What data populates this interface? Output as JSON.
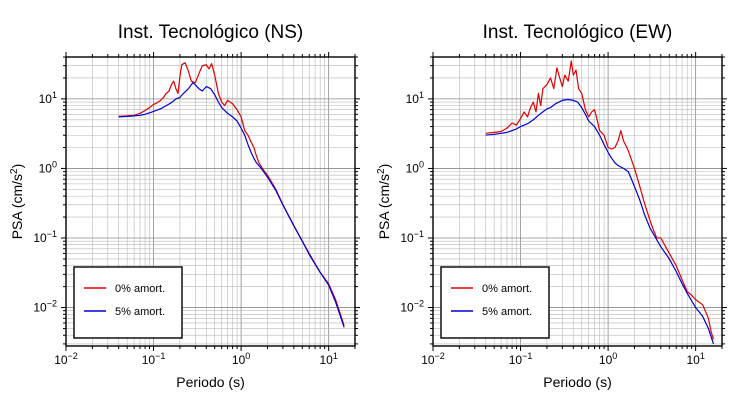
{
  "chart_data": [
    {
      "type": "line",
      "title": "Inst. Tecnológico (NS)",
      "xlabel": "Periodo (s)",
      "ylabel_main": "PSA (cm/s",
      "ylabel_sup": "2",
      "ylabel_close": ")",
      "xscale": "log",
      "yscale": "log",
      "xlim": [
        0.01,
        20
      ],
      "ylim": [
        0.0028,
        40
      ],
      "grid": true,
      "legend_position": "bottom-left",
      "x_ticks": [
        {
          "value": 0.01,
          "base": "10",
          "exp": "−2"
        },
        {
          "value": 0.1,
          "base": "10",
          "exp": "−1"
        },
        {
          "value": 1,
          "base": "10",
          "exp": "0"
        },
        {
          "value": 10,
          "base": "10",
          "exp": "1"
        }
      ],
      "y_ticks": [
        {
          "value": 0.01,
          "base": "10",
          "exp": "−2"
        },
        {
          "value": 0.1,
          "base": "10",
          "exp": "−1"
        },
        {
          "value": 1,
          "base": "10",
          "exp": "0"
        },
        {
          "value": 10,
          "base": "10",
          "exp": "1"
        }
      ],
      "series": [
        {
          "name": "0% amort.",
          "color": "#e00000",
          "points": [
            [
              0.04,
              5.6
            ],
            [
              0.05,
              5.7
            ],
            [
              0.06,
              5.8
            ],
            [
              0.07,
              6.2
            ],
            [
              0.08,
              6.8
            ],
            [
              0.09,
              7.5
            ],
            [
              0.1,
              8.3
            ],
            [
              0.11,
              8.8
            ],
            [
              0.12,
              9.5
            ],
            [
              0.13,
              10.5
            ],
            [
              0.14,
              12
            ],
            [
              0.15,
              13
            ],
            [
              0.16,
              16
            ],
            [
              0.17,
              18
            ],
            [
              0.18,
              14
            ],
            [
              0.19,
              12
            ],
            [
              0.2,
              21
            ],
            [
              0.21,
              31
            ],
            [
              0.23,
              33
            ],
            [
              0.25,
              25
            ],
            [
              0.27,
              18
            ],
            [
              0.3,
              17
            ],
            [
              0.33,
              23
            ],
            [
              0.36,
              30
            ],
            [
              0.4,
              31
            ],
            [
              0.43,
              27
            ],
            [
              0.46,
              32
            ],
            [
              0.5,
              22
            ],
            [
              0.55,
              12
            ],
            [
              0.6,
              9
            ],
            [
              0.65,
              8
            ],
            [
              0.7,
              9.5
            ],
            [
              0.8,
              8.5
            ],
            [
              0.9,
              7
            ],
            [
              1.0,
              5.5
            ],
            [
              1.1,
              3.5
            ],
            [
              1.2,
              3.0
            ],
            [
              1.3,
              2.4
            ],
            [
              1.4,
              2.0
            ],
            [
              1.5,
              1.5
            ],
            [
              1.6,
              1.2
            ],
            [
              1.8,
              0.95
            ],
            [
              2,
              0.8
            ],
            [
              2.5,
              0.5
            ],
            [
              3,
              0.3
            ],
            [
              4,
              0.15
            ],
            [
              5,
              0.09
            ],
            [
              6,
              0.06
            ],
            [
              7,
              0.043
            ],
            [
              8,
              0.032
            ],
            [
              10,
              0.022
            ],
            [
              12,
              0.013
            ],
            [
              15,
              0.0055
            ]
          ]
        },
        {
          "name": "5% amort.",
          "color": "#0000d8",
          "points": [
            [
              0.04,
              5.5
            ],
            [
              0.05,
              5.6
            ],
            [
              0.06,
              5.7
            ],
            [
              0.07,
              5.8
            ],
            [
              0.08,
              6.0
            ],
            [
              0.09,
              6.3
            ],
            [
              0.1,
              6.6
            ],
            [
              0.12,
              7.2
            ],
            [
              0.14,
              8.0
            ],
            [
              0.16,
              8.8
            ],
            [
              0.18,
              10
            ],
            [
              0.2,
              10.5
            ],
            [
              0.22,
              12
            ],
            [
              0.25,
              14
            ],
            [
              0.28,
              17
            ],
            [
              0.3,
              16
            ],
            [
              0.33,
              14
            ],
            [
              0.36,
              13
            ],
            [
              0.4,
              15
            ],
            [
              0.45,
              14
            ],
            [
              0.5,
              11.5
            ],
            [
              0.55,
              9
            ],
            [
              0.6,
              7.5
            ],
            [
              0.7,
              6.2
            ],
            [
              0.8,
              5.5
            ],
            [
              0.9,
              4.8
            ],
            [
              1.0,
              3.8
            ],
            [
              1.1,
              3.0
            ],
            [
              1.2,
              2.2
            ],
            [
              1.3,
              1.7
            ],
            [
              1.4,
              1.4
            ],
            [
              1.5,
              1.2
            ],
            [
              1.7,
              1.0
            ],
            [
              2,
              0.75
            ],
            [
              2.5,
              0.48
            ],
            [
              3,
              0.3
            ],
            [
              4,
              0.15
            ],
            [
              5,
              0.09
            ],
            [
              6,
              0.058
            ],
            [
              7,
              0.042
            ],
            [
              8,
              0.032
            ],
            [
              10,
              0.021
            ],
            [
              12,
              0.012
            ],
            [
              15,
              0.0052
            ]
          ]
        }
      ]
    },
    {
      "type": "line",
      "title": "Inst. Tecnológico (EW)",
      "xlabel": "Periodo (s)",
      "ylabel_main": "PSA (cm/s",
      "ylabel_sup": "2",
      "ylabel_close": ")",
      "xscale": "log",
      "yscale": "log",
      "xlim": [
        0.01,
        20
      ],
      "ylim": [
        0.0028,
        40
      ],
      "grid": true,
      "legend_position": "bottom-left",
      "x_ticks": [
        {
          "value": 0.01,
          "base": "10",
          "exp": "−2"
        },
        {
          "value": 0.1,
          "base": "10",
          "exp": "−1"
        },
        {
          "value": 1,
          "base": "10",
          "exp": "0"
        },
        {
          "value": 10,
          "base": "10",
          "exp": "1"
        }
      ],
      "y_ticks": [
        {
          "value": 0.01,
          "base": "10",
          "exp": "−2"
        },
        {
          "value": 0.1,
          "base": "10",
          "exp": "−1"
        },
        {
          "value": 1,
          "base": "10",
          "exp": "0"
        },
        {
          "value": 10,
          "base": "10",
          "exp": "1"
        }
      ],
      "series": [
        {
          "name": "0% amort.",
          "color": "#e00000",
          "points": [
            [
              0.04,
              3.2
            ],
            [
              0.05,
              3.3
            ],
            [
              0.06,
              3.4
            ],
            [
              0.07,
              3.8
            ],
            [
              0.08,
              4.5
            ],
            [
              0.09,
              4.2
            ],
            [
              0.1,
              5.2
            ],
            [
              0.11,
              6.5
            ],
            [
              0.12,
              5.5
            ],
            [
              0.13,
              7.5
            ],
            [
              0.14,
              9
            ],
            [
              0.15,
              6.5
            ],
            [
              0.16,
              12
            ],
            [
              0.17,
              8
            ],
            [
              0.18,
              14
            ],
            [
              0.2,
              16
            ],
            [
              0.22,
              20
            ],
            [
              0.24,
              14
            ],
            [
              0.26,
              28
            ],
            [
              0.28,
              20
            ],
            [
              0.3,
              15
            ],
            [
              0.32,
              22
            ],
            [
              0.35,
              18
            ],
            [
              0.38,
              35
            ],
            [
              0.4,
              22
            ],
            [
              0.43,
              26
            ],
            [
              0.46,
              14
            ],
            [
              0.5,
              12
            ],
            [
              0.55,
              7
            ],
            [
              0.6,
              5.5
            ],
            [
              0.65,
              6.5
            ],
            [
              0.7,
              7
            ],
            [
              0.75,
              5
            ],
            [
              0.8,
              3.5
            ],
            [
              0.9,
              3.0
            ],
            [
              1.0,
              2.0
            ],
            [
              1.1,
              1.9
            ],
            [
              1.2,
              2.0
            ],
            [
              1.3,
              2.5
            ],
            [
              1.4,
              3.5
            ],
            [
              1.5,
              2.5
            ],
            [
              1.7,
              1.8
            ],
            [
              2,
              1.0
            ],
            [
              2.3,
              0.55
            ],
            [
              2.6,
              0.32
            ],
            [
              3,
              0.18
            ],
            [
              3.3,
              0.13
            ],
            [
              3.6,
              0.1
            ],
            [
              4,
              0.1
            ],
            [
              5,
              0.06
            ],
            [
              6,
              0.04
            ],
            [
              7,
              0.025
            ],
            [
              8,
              0.017
            ],
            [
              9,
              0.015
            ],
            [
              10,
              0.013
            ],
            [
              12,
              0.011
            ],
            [
              14,
              0.007
            ],
            [
              15,
              0.0045
            ],
            [
              16,
              0.0035
            ]
          ]
        },
        {
          "name": "5% amort.",
          "color": "#0000d8",
          "points": [
            [
              0.04,
              3.0
            ],
            [
              0.05,
              3.1
            ],
            [
              0.06,
              3.2
            ],
            [
              0.07,
              3.3
            ],
            [
              0.08,
              3.5
            ],
            [
              0.09,
              3.7
            ],
            [
              0.1,
              4.0
            ],
            [
              0.12,
              4.4
            ],
            [
              0.14,
              5.0
            ],
            [
              0.16,
              5.8
            ],
            [
              0.18,
              6.5
            ],
            [
              0.2,
              7.2
            ],
            [
              0.22,
              7.5
            ],
            [
              0.25,
              8.5
            ],
            [
              0.3,
              9.5
            ],
            [
              0.35,
              9.8
            ],
            [
              0.4,
              9.5
            ],
            [
              0.45,
              9.0
            ],
            [
              0.5,
              7.5
            ],
            [
              0.55,
              6.0
            ],
            [
              0.6,
              4.8
            ],
            [
              0.7,
              4.0
            ],
            [
              0.8,
              3.0
            ],
            [
              0.9,
              2.2
            ],
            [
              1.0,
              1.7
            ],
            [
              1.1,
              1.4
            ],
            [
              1.2,
              1.2
            ],
            [
              1.3,
              1.1
            ],
            [
              1.5,
              1.0
            ],
            [
              1.7,
              0.9
            ],
            [
              2,
              0.55
            ],
            [
              2.3,
              0.35
            ],
            [
              2.6,
              0.22
            ],
            [
              3,
              0.14
            ],
            [
              3.5,
              0.1
            ],
            [
              4,
              0.075
            ],
            [
              5,
              0.05
            ],
            [
              6,
              0.033
            ],
            [
              7,
              0.022
            ],
            [
              8,
              0.016
            ],
            [
              10,
              0.01
            ],
            [
              12,
              0.0075
            ],
            [
              14,
              0.005
            ],
            [
              16,
              0.003
            ]
          ]
        }
      ]
    }
  ]
}
